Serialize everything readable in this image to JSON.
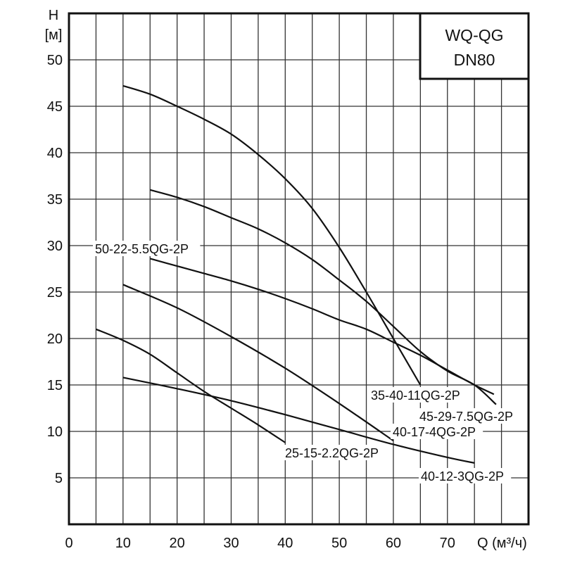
{
  "chart_data": {
    "type": "line",
    "title": "WQ-QG DN80",
    "title_lines": [
      "WQ-QG",
      "DN80"
    ],
    "ylabel_lines": [
      "H",
      "[м]"
    ],
    "xlabel": "Q (м³/ч)",
    "xlim": [
      0,
      85
    ],
    "ylim": [
      0,
      55
    ],
    "x_ticks": [
      0,
      10,
      20,
      30,
      40,
      50,
      60,
      70
    ],
    "y_ticks": [
      5,
      10,
      15,
      20,
      25,
      30,
      35,
      40,
      45,
      50
    ],
    "grid": true,
    "grid_step_x": 5,
    "grid_step_y": 5,
    "series": [
      {
        "name": "35-40-11QG-2P",
        "x": [
          10,
          15,
          20,
          25,
          30,
          35,
          40,
          45,
          50,
          55,
          60,
          65
        ],
        "y": [
          47.2,
          46.3,
          45,
          43.6,
          42,
          39.8,
          37.2,
          34,
          29.8,
          25,
          20,
          15
        ]
      },
      {
        "name": "45-29-7.5QG-2P",
        "x": [
          15,
          20,
          25,
          30,
          35,
          40,
          45,
          50,
          55,
          60,
          65,
          70,
          75,
          79
        ],
        "y": [
          36,
          35.2,
          34.2,
          33,
          31.8,
          30.3,
          28.5,
          26.3,
          24,
          21.3,
          18.6,
          16.5,
          15,
          12.9
        ]
      },
      {
        "name": "50-22-5.5QG-2P",
        "x": [
          15,
          20,
          25,
          30,
          35,
          40,
          45,
          50,
          55,
          60,
          65,
          70,
          75,
          78.6
        ],
        "y": [
          28.6,
          27.8,
          27,
          26.2,
          25.3,
          24.3,
          23.2,
          22,
          21,
          19.6,
          18.2,
          16.6,
          15,
          14
        ]
      },
      {
        "name": "40-17-4QG-2P",
        "x": [
          10,
          20,
          30,
          40,
          50,
          60
        ],
        "y": [
          25.8,
          23.3,
          20.2,
          16.8,
          13,
          9
        ]
      },
      {
        "name": "25-15-2.2QG-2P",
        "x": [
          5,
          10,
          15,
          20,
          25,
          30,
          35,
          40
        ],
        "y": [
          21,
          19.8,
          18.3,
          16.3,
          14.3,
          12.5,
          10.7,
          8.8
        ]
      },
      {
        "name": "40-12-3QG-2P",
        "x": [
          10,
          20,
          30,
          40,
          50,
          60,
          70,
          75
        ],
        "y": [
          15.8,
          14.6,
          13.3,
          11.8,
          10.2,
          8.6,
          7.2,
          6.6
        ]
      }
    ],
    "colors": {
      "line": "#111111",
      "grid": "#333333",
      "background": "#ffffff"
    }
  }
}
